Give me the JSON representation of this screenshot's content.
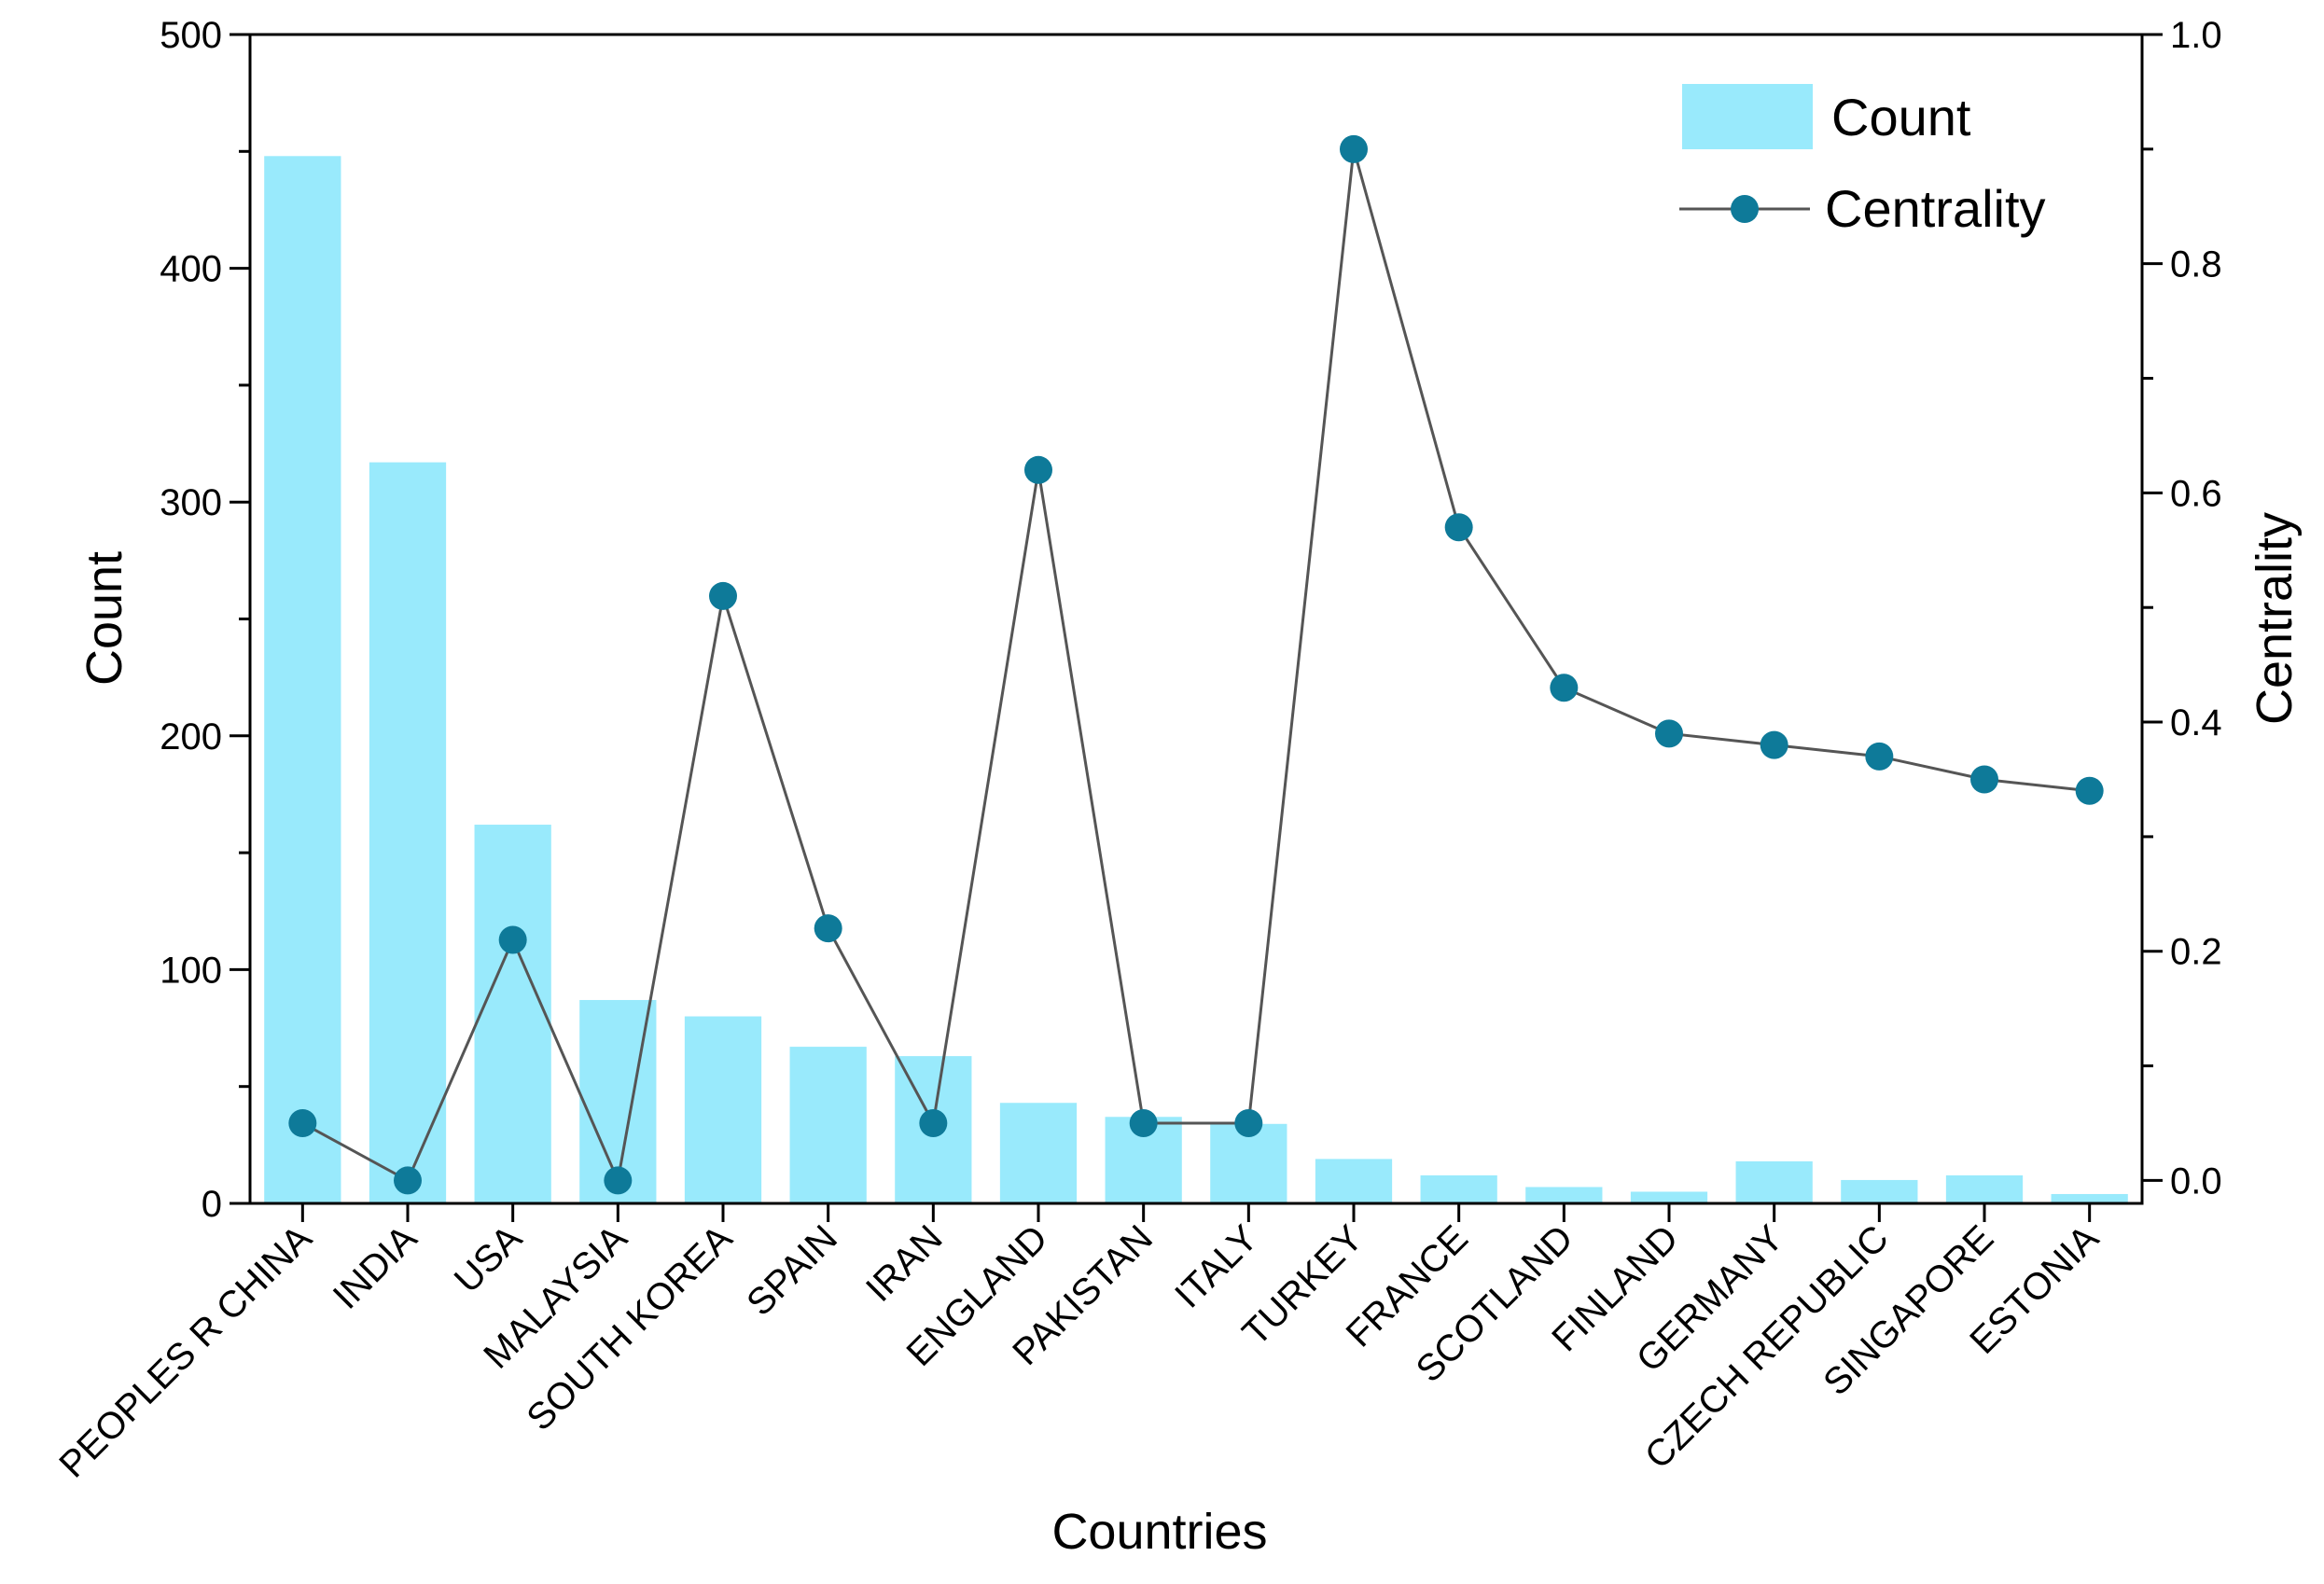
{
  "chart_data": {
    "type": "bar+line",
    "xlabel": "Countries",
    "ylabel_left": "Count",
    "ylabel_right": "Centrality",
    "categories": [
      "PEOPLES R CHINA",
      "INDIA",
      "USA",
      "MALAYSIA",
      "SOUTH KOREA",
      "SPAIN",
      "IRAN",
      "ENGLAND",
      "PAKISTAN",
      "ITALY",
      "TURKEY",
      "FRANCE",
      "SCOTLAND",
      "FINLAND",
      "GERMANY",
      "CZECH REPUBLIC",
      "SINGAPORE",
      "ESTONIA"
    ],
    "series": [
      {
        "name": "Count",
        "type": "bar",
        "axis": "left",
        "color": "#99eafc",
        "values": [
          448,
          317,
          162,
          87,
          80,
          67,
          63,
          43,
          37,
          34,
          19,
          12,
          7,
          5,
          18,
          10,
          12,
          4
        ]
      },
      {
        "name": "Centrality",
        "type": "line",
        "axis": "right",
        "color": "#0e7a99",
        "line_color": "#555555",
        "values": [
          0.05,
          0.0,
          0.21,
          0.0,
          0.51,
          0.22,
          0.05,
          0.62,
          0.05,
          0.05,
          0.9,
          0.57,
          0.43,
          0.39,
          0.38,
          0.37,
          0.35,
          0.34
        ]
      }
    ],
    "ylim_left": [
      0,
      500
    ],
    "yticks_left": [
      "0",
      "100",
      "200",
      "300",
      "400",
      "500"
    ],
    "ylim_right": [
      -0.02,
      1.0
    ],
    "yticks_right": [
      "0.0",
      "0.2",
      "0.4",
      "0.6",
      "0.8",
      "1.0"
    ],
    "legend": {
      "position": "top-right",
      "entries": [
        "Count",
        "Centrality"
      ]
    }
  }
}
